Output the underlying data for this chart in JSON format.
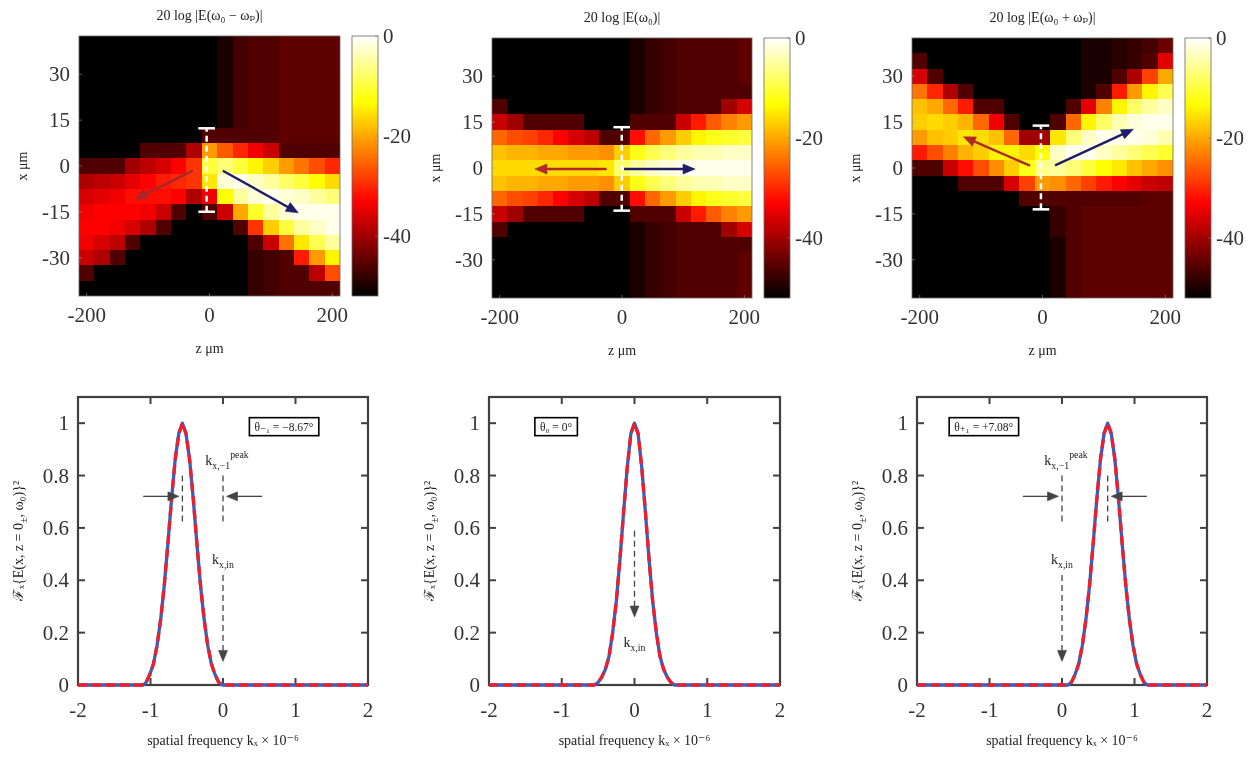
{
  "chart_data": [
    {
      "type": "heatmap",
      "title": "20 log |E(ω₀ − ωₚ)|",
      "xlabel": "z μm",
      "ylabel": "x μm",
      "categories": [
        "-200",
        null,
        null,
        null,
        null,
        null,
        null,
        null,
        "0",
        null,
        null,
        null,
        null,
        null,
        null,
        null,
        "200"
      ],
      "y_categories": [
        null,
        null,
        "30",
        null,
        null,
        "15",
        null,
        null,
        "0",
        null,
        null,
        "-15",
        null,
        null,
        "-30",
        null,
        null
      ],
      "cells": [
        [
          -52,
          -52,
          -52,
          -52,
          -52,
          -52,
          -52,
          -52,
          -52,
          -50,
          -47,
          -46,
          -46,
          -45,
          -45,
          -45,
          -45
        ],
        [
          -52,
          -52,
          -52,
          -52,
          -52,
          -52,
          -52,
          -52,
          -52,
          -50,
          -47,
          -46,
          -46,
          -45,
          -45,
          -45,
          -45
        ],
        [
          -52,
          -52,
          -52,
          -52,
          -52,
          -52,
          -52,
          -52,
          -52,
          -50,
          -47,
          -46,
          -46,
          -45,
          -45,
          -45,
          -45
        ],
        [
          -52,
          -52,
          -52,
          -52,
          -52,
          -52,
          -52,
          -52,
          -52,
          -50,
          -47,
          -46,
          -46,
          -45,
          -45,
          -45,
          -45
        ],
        [
          -52,
          -52,
          -52,
          -52,
          -52,
          -52,
          -52,
          -52,
          -52,
          -50,
          -47,
          -46,
          -46,
          -45,
          -45,
          -45,
          -45
        ],
        [
          -52,
          -52,
          -52,
          -52,
          -52,
          -52,
          -52,
          -52,
          -52,
          -50,
          -47,
          -46,
          -46,
          -45,
          -45,
          -45,
          -45
        ],
        [
          -52,
          -52,
          -52,
          -52,
          -52,
          -52,
          -52,
          -52,
          -46,
          -46,
          -46,
          -46,
          -46,
          -45,
          -45,
          -45,
          -45
        ],
        [
          -52,
          -52,
          -52,
          -52,
          -46,
          -46,
          -46,
          -39,
          -21,
          -26,
          -30,
          -34,
          -37,
          -46,
          -46,
          -46,
          -46
        ],
        [
          -46,
          -46,
          -46,
          -40,
          -38,
          -36,
          -33,
          -29,
          -10,
          -7,
          -10,
          -14,
          -17,
          -21,
          -24,
          -27,
          -30
        ],
        [
          -39,
          -38,
          -37,
          -35,
          -33,
          -31,
          -30,
          -29,
          -15,
          -2,
          -1,
          -3,
          -5,
          -8,
          -10,
          -13,
          -16
        ],
        [
          -36,
          -35,
          -34,
          -32,
          -32,
          -32,
          -33,
          -39,
          -34,
          -13,
          -5,
          -2,
          -1,
          -2,
          -3,
          -5,
          -7
        ],
        [
          -34,
          -33,
          -33,
          -33,
          -34,
          -37,
          -46,
          -52,
          -46,
          -37,
          -20,
          -11,
          -5,
          -2,
          -1,
          -1,
          -1
        ],
        [
          -33,
          -33,
          -34,
          -36,
          -39,
          -46,
          -52,
          -52,
          -52,
          -52,
          -46,
          -29,
          -17,
          -10,
          -5,
          -3,
          -1
        ],
        [
          -34,
          -36,
          -38,
          -46,
          -52,
          -52,
          -52,
          -52,
          -52,
          -52,
          -52,
          -46,
          -37,
          -24,
          -15,
          -9,
          -5
        ],
        [
          -37,
          -39,
          -46,
          -52,
          -52,
          -52,
          -52,
          -52,
          -52,
          -52,
          -52,
          -48,
          -47,
          -46,
          -31,
          -21,
          -14
        ],
        [
          -46,
          -52,
          -52,
          -52,
          -52,
          -52,
          -52,
          -52,
          -52,
          -52,
          -52,
          -48,
          -47,
          -46,
          -46,
          -38,
          -27
        ],
        [
          -52,
          -52,
          -52,
          -52,
          -52,
          -52,
          -52,
          -52,
          -52,
          -52,
          -52,
          -48,
          -47,
          -46,
          -46,
          -46,
          -46
        ]
      ],
      "clim": [
        -52,
        0
      ],
      "cticks": [
        -40,
        -20,
        0
      ]
    },
    {
      "type": "heatmap",
      "title": "20 log |E(ω₀)|",
      "xlabel": "z μm",
      "ylabel": "x μm",
      "categories": [
        "-200",
        null,
        null,
        null,
        null,
        null,
        null,
        null,
        "0",
        null,
        null,
        null,
        null,
        null,
        null,
        null,
        "200"
      ],
      "y_categories": [
        null,
        null,
        "30",
        null,
        null,
        "15",
        null,
        null,
        "0",
        null,
        null,
        "-15",
        null,
        null,
        "-30",
        null,
        null
      ],
      "cells": [
        [
          -52,
          -52,
          -52,
          -52,
          -52,
          -52,
          -52,
          -52,
          -52,
          -50,
          -48,
          -47,
          -46,
          -46,
          -46,
          -46,
          -45
        ],
        [
          -52,
          -52,
          -52,
          -52,
          -52,
          -52,
          -52,
          -52,
          -52,
          -50,
          -48,
          -47,
          -46,
          -46,
          -46,
          -46,
          -45
        ],
        [
          -52,
          -52,
          -52,
          -52,
          -52,
          -52,
          -52,
          -52,
          -52,
          -50,
          -48,
          -47,
          -46,
          -46,
          -46,
          -46,
          -45
        ],
        [
          -52,
          -52,
          -52,
          -52,
          -52,
          -52,
          -52,
          -52,
          -52,
          -50,
          -48,
          -47,
          -46,
          -46,
          -46,
          -46,
          -46
        ],
        [
          -46,
          -52,
          -52,
          -52,
          -52,
          -52,
          -52,
          -52,
          -52,
          -50,
          -48,
          -47,
          -46,
          -46,
          -46,
          -40,
          -36
        ],
        [
          -37,
          -40,
          -46,
          -46,
          -46,
          -46,
          -52,
          -52,
          -52,
          -46,
          -46,
          -46,
          -37,
          -31,
          -26,
          -23,
          -21
        ],
        [
          -25,
          -27,
          -28,
          -30,
          -33,
          -36,
          -38,
          -46,
          -46,
          -32,
          -25,
          -21,
          -17,
          -14,
          -12,
          -11,
          -10
        ],
        [
          -18,
          -19,
          -19,
          -20,
          -20,
          -21,
          -21,
          -22,
          -17,
          -12,
          -9,
          -7,
          -5,
          -4,
          -4,
          -3,
          -3
        ],
        [
          -16,
          -16,
          -16,
          -16,
          -16,
          -16,
          -16,
          -15,
          -8,
          -5,
          -3,
          -2,
          -1,
          -1,
          -1,
          -1,
          -1
        ],
        [
          -18,
          -19,
          -19,
          -20,
          -20,
          -21,
          -21,
          -22,
          -17,
          -12,
          -9,
          -7,
          -5,
          -4,
          -4,
          -3,
          -3
        ],
        [
          -25,
          -27,
          -28,
          -30,
          -33,
          -36,
          -38,
          -46,
          -46,
          -32,
          -25,
          -21,
          -17,
          -14,
          -12,
          -11,
          -10
        ],
        [
          -37,
          -40,
          -46,
          -46,
          -46,
          -46,
          -52,
          -52,
          -52,
          -46,
          -46,
          -46,
          -37,
          -31,
          -26,
          -23,
          -21
        ],
        [
          -46,
          -52,
          -52,
          -52,
          -52,
          -52,
          -52,
          -52,
          -52,
          -50,
          -48,
          -47,
          -46,
          -46,
          -46,
          -40,
          -36
        ],
        [
          -52,
          -52,
          -52,
          -52,
          -52,
          -52,
          -52,
          -52,
          -52,
          -50,
          -48,
          -47,
          -46,
          -46,
          -46,
          -46,
          -46
        ],
        [
          -52,
          -52,
          -52,
          -52,
          -52,
          -52,
          -52,
          -52,
          -52,
          -50,
          -48,
          -47,
          -46,
          -46,
          -46,
          -46,
          -45
        ],
        [
          -52,
          -52,
          -52,
          -52,
          -52,
          -52,
          -52,
          -52,
          -52,
          -50,
          -48,
          -47,
          -46,
          -46,
          -46,
          -46,
          -45
        ],
        [
          -52,
          -52,
          -52,
          -52,
          -52,
          -52,
          -52,
          -52,
          -52,
          -50,
          -48,
          -47,
          -46,
          -46,
          -46,
          -46,
          -45
        ]
      ],
      "clim": [
        -52,
        0
      ],
      "cticks": [
        -40,
        -20,
        0
      ]
    },
    {
      "type": "heatmap",
      "title": "20 log |E(ω₀ + ωₚ)|",
      "xlabel": "z μm",
      "ylabel": "x μm",
      "categories": [
        "-200",
        null,
        null,
        null,
        null,
        null,
        null,
        null,
        "0",
        null,
        null,
        null,
        null,
        null,
        null,
        null,
        "200"
      ],
      "y_categories": [
        null,
        null,
        "30",
        null,
        null,
        "15",
        null,
        null,
        "0",
        null,
        null,
        "-15",
        null,
        null,
        "-30",
        null,
        null
      ],
      "cells": [
        [
          -52,
          -52,
          -52,
          -52,
          -52,
          -52,
          -52,
          -52,
          -52,
          -52,
          -52,
          -50,
          -50,
          -49,
          -48,
          -47,
          -44
        ],
        [
          -46,
          -52,
          -52,
          -52,
          -52,
          -52,
          -52,
          -52,
          -52,
          -52,
          -52,
          -50,
          -50,
          -49,
          -48,
          -46,
          -35
        ],
        [
          -36,
          -46,
          -52,
          -52,
          -52,
          -52,
          -52,
          -52,
          -52,
          -52,
          -52,
          -50,
          -50,
          -46,
          -39,
          -28,
          -20
        ],
        [
          -24,
          -30,
          -39,
          -46,
          -52,
          -52,
          -52,
          -52,
          -52,
          -52,
          -52,
          -50,
          -46,
          -31,
          -21,
          -14,
          -9
        ],
        [
          -18,
          -20,
          -25,
          -31,
          -46,
          -46,
          -52,
          -52,
          -52,
          -52,
          -46,
          -35,
          -23,
          -14,
          -8,
          -5,
          -3
        ],
        [
          -17,
          -16,
          -17,
          -19,
          -25,
          -34,
          -46,
          -52,
          -52,
          -46,
          -25,
          -14,
          -8,
          -4,
          -2,
          -1,
          -1
        ],
        [
          -21,
          -18,
          -17,
          -15,
          -16,
          -18,
          -25,
          -40,
          -40,
          -15,
          -7,
          -3,
          -1,
          -1,
          -1,
          -2,
          -4
        ],
        [
          -31,
          -27,
          -23,
          -19,
          -17,
          -14,
          -14,
          -16,
          -13,
          -3,
          -1,
          -1,
          -3,
          -5,
          -7,
          -9,
          -11
        ],
        [
          -46,
          -46,
          -37,
          -32,
          -27,
          -22,
          -17,
          -12,
          -6,
          -5,
          -7,
          -10,
          -13,
          -15,
          -18,
          -20,
          -22
        ],
        [
          -52,
          -52,
          -52,
          -46,
          -46,
          -46,
          -36,
          -28,
          -21,
          -22,
          -25,
          -28,
          -31,
          -33,
          -35,
          -37,
          -38
        ],
        [
          -52,
          -52,
          -52,
          -52,
          -52,
          -52,
          -52,
          -46,
          -46,
          -46,
          -46,
          -46,
          -46,
          -46,
          -46,
          -45,
          -45
        ],
        [
          -52,
          -52,
          -52,
          -52,
          -52,
          -52,
          -52,
          -52,
          -52,
          -48,
          -46,
          -45,
          -45,
          -45,
          -45,
          -45,
          -45
        ],
        [
          -52,
          -52,
          -52,
          -52,
          -52,
          -52,
          -52,
          -52,
          -52,
          -48,
          -46,
          -45,
          -45,
          -45,
          -45,
          -45,
          -45
        ],
        [
          -52,
          -52,
          -52,
          -52,
          -52,
          -52,
          -52,
          -52,
          -52,
          -50,
          -46,
          -45,
          -45,
          -45,
          -45,
          -45,
          -45
        ],
        [
          -52,
          -52,
          -52,
          -52,
          -52,
          -52,
          -52,
          -52,
          -52,
          -50,
          -46,
          -45,
          -45,
          -45,
          -45,
          -45,
          -45
        ],
        [
          -52,
          -52,
          -52,
          -52,
          -52,
          -52,
          -52,
          -52,
          -52,
          -50,
          -46,
          -45,
          -45,
          -45,
          -45,
          -45,
          -45
        ],
        [
          -52,
          -52,
          -52,
          -52,
          -52,
          -52,
          -52,
          -52,
          -52,
          -50,
          -46,
          -45,
          -45,
          -45,
          -45,
          -45,
          -45
        ]
      ],
      "clim": [
        -52,
        0
      ],
      "cticks": [
        -40,
        -20,
        0
      ]
    },
    {
      "type": "line",
      "xlabel": "spatial frequency kₓ × 10⁻⁶",
      "ylabel": "ℱₓ{E(x, z = 0$_{±}$, ω₀)}²",
      "x": [
        -2,
        -1.5,
        -1.1,
        -1.06,
        -1.01,
        -0.96,
        -0.91,
        -0.86,
        -0.81,
        -0.76,
        -0.71,
        -0.66,
        -0.61,
        -0.56,
        -0.51,
        -0.46,
        -0.41,
        -0.36,
        -0.31,
        -0.26,
        -0.21,
        -0.16,
        -0.11,
        -0.06,
        0,
        0.5,
        1,
        1.5,
        2
      ],
      "series": [
        {
          "color": "#3b5cc0",
          "line_style": "solid",
          "values": [
            0,
            0,
            0,
            0.01,
            0.04,
            0.08,
            0.15,
            0.25,
            0.38,
            0.54,
            0.71,
            0.86,
            0.96,
            1,
            0.96,
            0.86,
            0.71,
            0.54,
            0.38,
            0.25,
            0.15,
            0.08,
            0.04,
            0.01,
            0,
            0,
            0,
            0,
            0
          ]
        },
        {
          "color": "#ee1f2d",
          "line_style": "dashed",
          "values": [
            0,
            0,
            0,
            0.01,
            0.04,
            0.08,
            0.15,
            0.25,
            0.38,
            0.54,
            0.71,
            0.86,
            0.96,
            1,
            0.96,
            0.86,
            0.71,
            0.54,
            0.38,
            0.25,
            0.15,
            0.08,
            0.04,
            0.01,
            0,
            0,
            0,
            0,
            0
          ]
        }
      ],
      "xlim": [
        -2,
        2
      ],
      "ylim": [
        0,
        1.1
      ],
      "xticks": [
        -2,
        -1,
        0,
        1,
        2
      ],
      "yticks": [
        0,
        0.2,
        0.4,
        0.6,
        0.8,
        1
      ],
      "annotations": [
        "θ₋₁ = −8.67°",
        "k$_{x,−1}$$^{peak}$",
        "k$_{x,in}$"
      ]
    },
    {
      "type": "line",
      "xlabel": "spatial frequency kₓ × 10⁻⁶",
      "ylabel": "ℱₓ{E(x, z = 0$_{±}$, ω₀)}²",
      "x": [
        -2,
        -1.5,
        -1,
        -0.55,
        -0.5,
        -0.45,
        -0.4,
        -0.35,
        -0.3,
        -0.25,
        -0.2,
        -0.15,
        -0.1,
        -0.05,
        0,
        0.05,
        0.1,
        0.15,
        0.2,
        0.25,
        0.3,
        0.35,
        0.4,
        0.45,
        0.5,
        0.55,
        1,
        1.5,
        2
      ],
      "series": [
        {
          "color": "#3b5cc0",
          "line_style": "solid",
          "values": [
            0,
            0,
            0,
            0,
            0.01,
            0.03,
            0.06,
            0.11,
            0.2,
            0.32,
            0.48,
            0.66,
            0.83,
            0.96,
            1,
            0.96,
            0.83,
            0.66,
            0.48,
            0.32,
            0.2,
            0.11,
            0.06,
            0.03,
            0.01,
            0,
            0,
            0,
            0
          ]
        },
        {
          "color": "#ee1f2d",
          "line_style": "dashed",
          "values": [
            0,
            0,
            0,
            0,
            0.01,
            0.03,
            0.06,
            0.11,
            0.2,
            0.32,
            0.48,
            0.66,
            0.83,
            0.96,
            1,
            0.96,
            0.83,
            0.66,
            0.48,
            0.32,
            0.2,
            0.11,
            0.06,
            0.03,
            0.01,
            0,
            0,
            0,
            0
          ]
        }
      ],
      "xlim": [
        -2,
        2
      ],
      "ylim": [
        0,
        1.1
      ],
      "xticks": [
        -2,
        -1,
        0,
        1,
        2
      ],
      "yticks": [
        0,
        0.2,
        0.4,
        0.6,
        0.8,
        1
      ],
      "annotations": [
        "θ₀ = 0°",
        "k$_{x,in}$"
      ]
    },
    {
      "type": "line",
      "xlabel": "spatial frequency kₓ × 10⁻⁶",
      "ylabel": "ℱₓ{E(x, z = 0$_{±}$, ω₀)}²",
      "x": [
        -2,
        -1.5,
        -1,
        -0.5,
        0,
        0.08,
        0.13,
        0.18,
        0.23,
        0.28,
        0.33,
        0.38,
        0.43,
        0.48,
        0.53,
        0.58,
        0.63,
        0.68,
        0.73,
        0.78,
        0.83,
        0.88,
        0.93,
        0.98,
        1.03,
        1.08,
        1.13,
        1.18,
        1.5,
        2
      ],
      "series": [
        {
          "color": "#3b5cc0",
          "line_style": "solid",
          "values": [
            0,
            0,
            0,
            0,
            0,
            0,
            0.01,
            0.04,
            0.08,
            0.15,
            0.25,
            0.38,
            0.54,
            0.71,
            0.86,
            0.96,
            1,
            0.96,
            0.86,
            0.71,
            0.54,
            0.38,
            0.25,
            0.15,
            0.08,
            0.04,
            0.01,
            0,
            0,
            0
          ]
        },
        {
          "color": "#ee1f2d",
          "line_style": "dashed",
          "values": [
            0,
            0,
            0,
            0,
            0,
            0,
            0.01,
            0.04,
            0.08,
            0.15,
            0.25,
            0.38,
            0.54,
            0.71,
            0.86,
            0.96,
            1,
            0.96,
            0.86,
            0.71,
            0.54,
            0.38,
            0.25,
            0.15,
            0.08,
            0.04,
            0.01,
            0,
            0,
            0
          ]
        }
      ],
      "xlim": [
        -2,
        2
      ],
      "ylim": [
        0,
        1.1
      ],
      "xticks": [
        -2,
        -1,
        0,
        1,
        2
      ],
      "yticks": [
        0,
        0.2,
        0.4,
        0.6,
        0.8,
        1
      ],
      "annotations": [
        "θ₊₁ = +7.08°",
        "k$_{x,−1}$$^{peak}$",
        "k$_{x,in}$"
      ]
    }
  ]
}
